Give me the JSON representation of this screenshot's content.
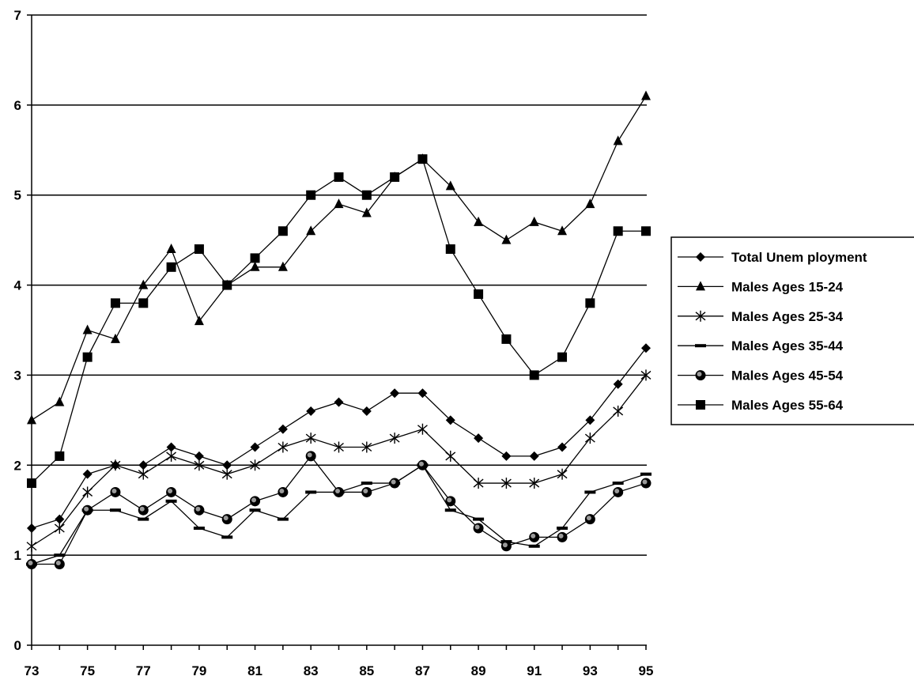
{
  "chart_data": {
    "type": "line",
    "title": "",
    "xlabel": "",
    "ylabel": "",
    "x": [
      "73",
      "74",
      "75",
      "76",
      "77",
      "78",
      "79",
      "80",
      "81",
      "82",
      "83",
      "84",
      "85",
      "86",
      "87",
      "88",
      "89",
      "90",
      "91",
      "92",
      "93",
      "94",
      "95"
    ],
    "x_tick_labels": [
      "73",
      "75",
      "77",
      "79",
      "81",
      "83",
      "85",
      "87",
      "89",
      "91",
      "93",
      "95"
    ],
    "ylim": [
      0,
      7
    ],
    "y_ticks": [
      "0",
      "1",
      "2",
      "3",
      "4",
      "5",
      "6",
      "7"
    ],
    "grid": "horizontal",
    "legend_position": "right",
    "series": [
      {
        "name": "Total Unemployment",
        "marker": "diamond",
        "values": [
          1.3,
          1.4,
          1.9,
          2.0,
          2.0,
          2.2,
          2.1,
          2.0,
          2.2,
          2.4,
          2.6,
          2.7,
          2.6,
          2.8,
          2.8,
          2.5,
          2.3,
          2.1,
          2.1,
          2.2,
          2.5,
          2.9,
          3.3
        ]
      },
      {
        "name": "Males Ages 15-24",
        "marker": "triangle",
        "values": [
          2.5,
          2.7,
          3.5,
          3.4,
          4.0,
          4.4,
          3.6,
          4.0,
          4.2,
          4.2,
          4.6,
          4.9,
          4.8,
          5.2,
          5.4,
          5.1,
          4.7,
          4.5,
          4.7,
          4.6,
          4.9,
          5.6,
          6.1
        ]
      },
      {
        "name": "Males Ages 25-34",
        "marker": "asterisk",
        "values": [
          1.1,
          1.3,
          1.7,
          2.0,
          1.9,
          2.1,
          2.0,
          1.9,
          2.0,
          2.2,
          2.3,
          2.2,
          2.2,
          2.3,
          2.4,
          2.1,
          1.8,
          1.8,
          1.8,
          1.9,
          2.3,
          2.6,
          3.0
        ]
      },
      {
        "name": "Males Ages 35-44",
        "marker": "dash",
        "values": [
          0.9,
          1.0,
          1.5,
          1.5,
          1.4,
          1.6,
          1.3,
          1.2,
          1.5,
          1.4,
          1.7,
          1.7,
          1.8,
          1.8,
          2.0,
          1.5,
          1.4,
          1.15,
          1.1,
          1.3,
          1.7,
          1.8,
          1.9
        ]
      },
      {
        "name": "Males Ages 45-54",
        "marker": "circle",
        "values": [
          0.9,
          0.9,
          1.5,
          1.7,
          1.5,
          1.7,
          1.5,
          1.4,
          1.6,
          1.7,
          2.1,
          1.7,
          1.7,
          1.8,
          2.0,
          1.6,
          1.3,
          1.1,
          1.2,
          1.2,
          1.4,
          1.7,
          1.8
        ]
      },
      {
        "name": "Males Ages 55-64",
        "marker": "square",
        "values": [
          1.8,
          2.1,
          3.2,
          3.8,
          3.8,
          4.2,
          4.4,
          4.0,
          4.3,
          4.6,
          5.0,
          5.2,
          5.0,
          5.2,
          5.4,
          4.4,
          3.9,
          3.4,
          3.0,
          3.2,
          3.8,
          4.6,
          4.6
        ]
      }
    ],
    "legend_labels": [
      "Total Unem ployment",
      "Males Ages 15-24",
      "Males Ages 25-34",
      "Males Ages 35-44",
      "Males Ages 45-54",
      "Males Ages 55-64"
    ]
  }
}
